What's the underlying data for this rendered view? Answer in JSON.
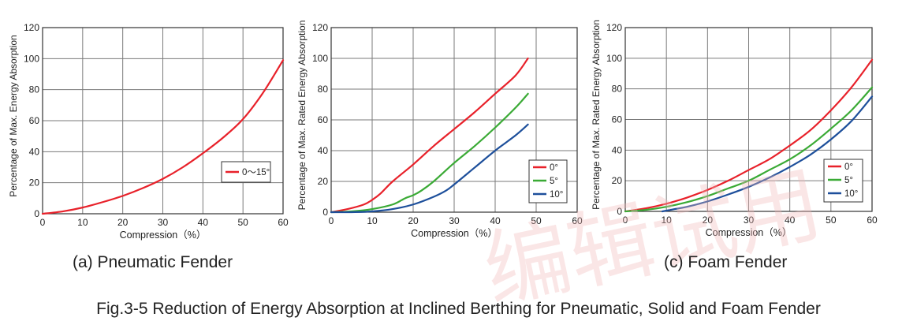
{
  "watermark": "编辑试用",
  "figure_caption": "Fig.3-5  Reduction of Energy Absorption at Inclined Berthing for Pneumatic, Solid and Foam Fender",
  "panel_captions": [
    "(a) Pneumatic Fender",
    "",
    "(c) Foam Fender"
  ],
  "colors": {
    "red": "#e8212a",
    "green": "#3aaa35",
    "blue": "#1d4f9b",
    "grid": "#7a7a7a"
  },
  "chart_data": [
    {
      "type": "line",
      "xlabel": "Compression（%）",
      "ylabel": "Percentage of Max. Energy Absorption",
      "xlim": [
        0,
        60
      ],
      "ylim": [
        0,
        120
      ],
      "xticks": [
        0,
        10,
        20,
        30,
        40,
        50,
        60
      ],
      "yticks": [
        0,
        20,
        40,
        60,
        80,
        100,
        120
      ],
      "grid": true,
      "legend_position": "lower-right",
      "series": [
        {
          "name": "0〜15°",
          "color": "#e8212a",
          "x": [
            0,
            5,
            10,
            15,
            20,
            25,
            30,
            35,
            40,
            45,
            50,
            55,
            60
          ],
          "y": [
            0,
            1.5,
            4,
            7.5,
            11.5,
            16.5,
            22.5,
            30,
            39,
            49,
            61,
            78,
            99
          ]
        }
      ]
    },
    {
      "type": "line",
      "xlabel": "Compression（%）",
      "ylabel": "Percentage of Max. Rated Energy Absorption",
      "xlim": [
        0,
        60
      ],
      "ylim": [
        0,
        120
      ],
      "xticks": [
        0,
        10,
        20,
        30,
        40,
        50,
        60
      ],
      "yticks": [
        0,
        20,
        40,
        60,
        80,
        100,
        120
      ],
      "grid": true,
      "legend_position": "lower-right",
      "series": [
        {
          "name": "0°",
          "color": "#e8212a",
          "x": [
            0,
            4,
            8,
            10,
            12,
            15,
            20,
            25,
            30,
            35,
            40,
            45,
            48
          ],
          "y": [
            0,
            2,
            5,
            8,
            12,
            20,
            31,
            43,
            54,
            65,
            77,
            89,
            100
          ]
        },
        {
          "name": "5°",
          "color": "#3aaa35",
          "x": [
            0,
            5,
            10,
            15,
            18,
            20,
            22,
            25,
            30,
            35,
            40,
            45,
            48
          ],
          "y": [
            0,
            0.5,
            2,
            5,
            9,
            11,
            14,
            20,
            32,
            43,
            55,
            68,
            77
          ]
        },
        {
          "name": "10°",
          "color": "#1d4f9b",
          "x": [
            0,
            5,
            10,
            15,
            20,
            25,
            28,
            30,
            35,
            40,
            45,
            48
          ],
          "y": [
            0,
            0,
            0.5,
            2,
            5,
            10,
            14,
            18,
            29,
            40,
            50,
            57
          ]
        }
      ]
    },
    {
      "type": "line",
      "xlabel": "Compression（%）",
      "ylabel": "Percentage of Max. Rated Energy Absorption",
      "xlim": [
        0,
        60
      ],
      "ylim": [
        0,
        120
      ],
      "xticks": [
        0,
        10,
        20,
        30,
        40,
        50,
        60
      ],
      "yticks": [
        0,
        20,
        40,
        60,
        80,
        100,
        120
      ],
      "grid": true,
      "legend_position": "lower-right",
      "series": [
        {
          "name": "0°",
          "color": "#e8212a",
          "x": [
            0,
            5,
            10,
            15,
            20,
            25,
            30,
            35,
            40,
            45,
            50,
            55,
            60
          ],
          "y": [
            0,
            2,
            5,
            9,
            14,
            20,
            27,
            34,
            43,
            53,
            66,
            81,
            99
          ]
        },
        {
          "name": "5°",
          "color": "#3aaa35",
          "x": [
            0,
            5,
            10,
            15,
            20,
            25,
            30,
            35,
            40,
            45,
            50,
            55,
            60
          ],
          "y": [
            0,
            1,
            3,
            6,
            10,
            15,
            20,
            27,
            34,
            43,
            54,
            66,
            81
          ]
        },
        {
          "name": "10°",
          "color": "#1d4f9b",
          "x": [
            9,
            12,
            15,
            20,
            25,
            30,
            35,
            40,
            45,
            50,
            55,
            60
          ],
          "y": [
            0,
            1.5,
            3,
            6.5,
            11,
            16,
            22,
            29,
            37,
            47,
            59,
            75
          ]
        }
      ]
    }
  ]
}
